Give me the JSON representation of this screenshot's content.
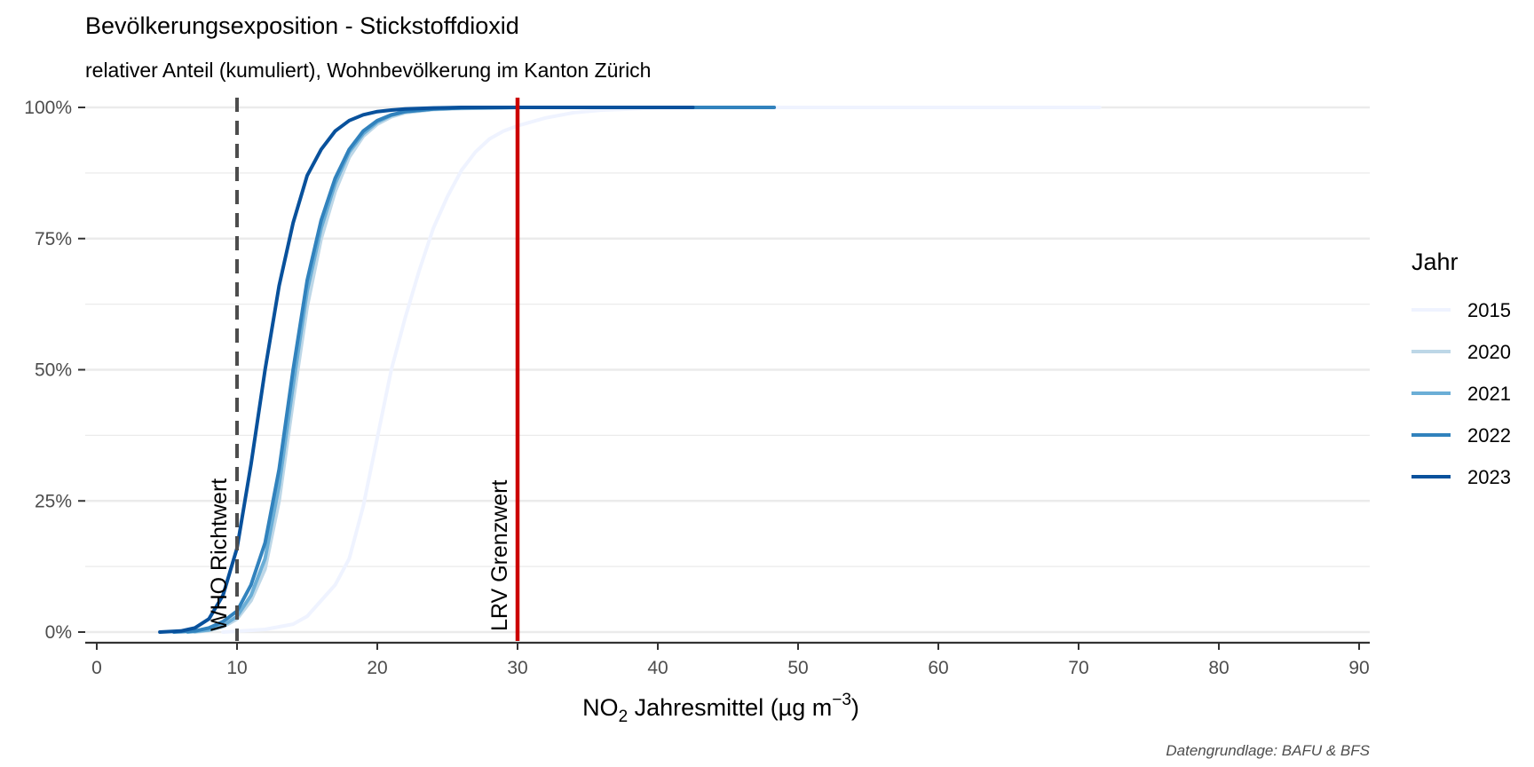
{
  "chart_data": {
    "type": "line",
    "title": "Bevölkerungsexposition - Stickstoffdioxid",
    "subtitle": "relativer Anteil (kumuliert), Wohnbevölkerung im Kanton Zürich",
    "xlabel": {
      "prefix": "NO",
      "subscript": "2",
      "middle": " Jahresmittel (µg m",
      "superscript": "−3",
      "suffix": ")"
    },
    "ylabel": "",
    "caption": "Datengrundlage: BAFU & BFS",
    "xlim": [
      -1,
      90.5
    ],
    "ylim": [
      -0.02,
      1.02
    ],
    "x_ticks": [
      0,
      10,
      20,
      30,
      40,
      50,
      60,
      70,
      80,
      90
    ],
    "x_tick_labels": [
      "0",
      "10",
      "20",
      "30",
      "40",
      "50",
      "60",
      "70",
      "80",
      "90"
    ],
    "y_ticks": [
      0,
      0.25,
      0.5,
      0.75,
      1
    ],
    "y_tick_labels": [
      "0%",
      "25%",
      "50%",
      "75%",
      "100%"
    ],
    "y_minor_ticks": [
      0.125,
      0.375,
      0.625,
      0.875
    ],
    "grid": true,
    "legend": {
      "title": "Jahr",
      "position": "right",
      "entries": [
        "2015",
        "2020",
        "2021",
        "2022",
        "2023"
      ]
    },
    "reference_lines": [
      {
        "x": 10,
        "label": "WHO Richtwert",
        "color": "#4d4d4d",
        "style": "dashed"
      },
      {
        "x": 30,
        "label": "LRV Grenzwert",
        "color": "#cc0000",
        "style": "solid"
      }
    ],
    "series": [
      {
        "name": "2015",
        "color": "#eff3ff",
        "x": [
          9,
          12,
          14,
          15,
          16,
          17,
          18,
          19,
          20,
          21,
          22,
          23,
          24,
          25,
          26,
          27,
          28,
          29,
          30,
          32,
          34,
          36,
          40,
          50,
          60,
          71.5
        ],
        "y": [
          0,
          0.005,
          0.015,
          0.03,
          0.06,
          0.09,
          0.14,
          0.24,
          0.37,
          0.5,
          0.6,
          0.69,
          0.77,
          0.83,
          0.88,
          0.915,
          0.94,
          0.955,
          0.965,
          0.98,
          0.99,
          0.995,
          0.999,
          1,
          1,
          1
        ]
      },
      {
        "name": "2020",
        "color": "#bdd7e7",
        "x": [
          7,
          8,
          9,
          10,
          11,
          12,
          13,
          14,
          15,
          16,
          17,
          18,
          19,
          20,
          21,
          22,
          24,
          26,
          30,
          35,
          40
        ],
        "y": [
          0,
          0.003,
          0.01,
          0.025,
          0.06,
          0.12,
          0.25,
          0.44,
          0.62,
          0.75,
          0.84,
          0.905,
          0.945,
          0.968,
          0.982,
          0.99,
          0.996,
          0.998,
          1,
          1,
          1
        ]
      },
      {
        "name": "2021",
        "color": "#6baed6",
        "x": [
          6.5,
          8,
          9,
          10,
          11,
          12,
          13,
          14,
          15,
          16,
          17,
          18,
          19,
          20,
          21,
          22,
          24,
          26,
          30,
          35,
          40
        ],
        "y": [
          0,
          0.004,
          0.012,
          0.03,
          0.07,
          0.14,
          0.28,
          0.47,
          0.65,
          0.77,
          0.855,
          0.915,
          0.95,
          0.972,
          0.985,
          0.992,
          0.997,
          0.999,
          1,
          1,
          1
        ]
      },
      {
        "name": "2022",
        "color": "#3182bd",
        "x": [
          5.5,
          7,
          8,
          9,
          10,
          11,
          12,
          13,
          14,
          15,
          16,
          17,
          18,
          19,
          20,
          21,
          22,
          24,
          26,
          30,
          40,
          48.3
        ],
        "y": [
          0,
          0.002,
          0.008,
          0.02,
          0.04,
          0.09,
          0.17,
          0.31,
          0.5,
          0.67,
          0.785,
          0.865,
          0.92,
          0.955,
          0.975,
          0.986,
          0.992,
          0.997,
          0.999,
          1,
          1,
          1
        ]
      },
      {
        "name": "2023",
        "color": "#08519c",
        "x": [
          4.5,
          6,
          7,
          8,
          9,
          10,
          11,
          12,
          13,
          14,
          15,
          16,
          17,
          18,
          19,
          20,
          21,
          22,
          24,
          26,
          30,
          35,
          42.5
        ],
        "y": [
          0,
          0.002,
          0.008,
          0.025,
          0.07,
          0.16,
          0.32,
          0.5,
          0.66,
          0.78,
          0.87,
          0.92,
          0.955,
          0.975,
          0.986,
          0.992,
          0.995,
          0.997,
          0.999,
          1,
          1,
          1,
          1
        ]
      }
    ]
  }
}
